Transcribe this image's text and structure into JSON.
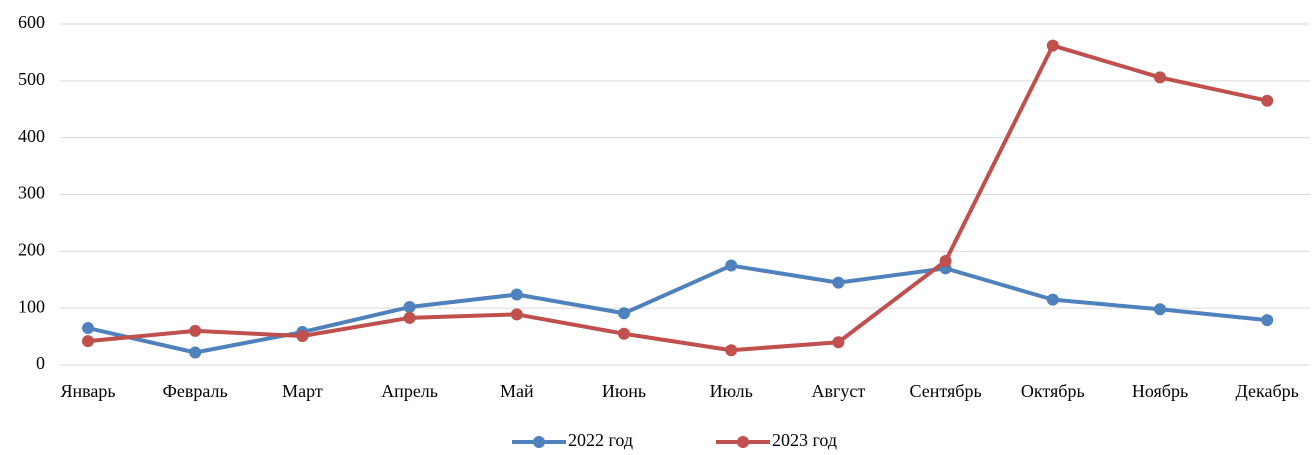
{
  "chart_data": {
    "type": "line",
    "categories": [
      "Январь",
      "Февраль",
      "Март",
      "Апрель",
      "Май",
      "Июнь",
      "Июль",
      "Август",
      "Сентябрь",
      "Октябрь",
      "Ноябрь",
      "Декабрь"
    ],
    "series": [
      {
        "name": "2022 год",
        "color": "#4f81bd",
        "values": [
          65,
          22,
          58,
          102,
          124,
          91,
          175,
          145,
          170,
          115,
          98,
          79
        ]
      },
      {
        "name": "2023 год",
        "color": "#c0504d",
        "values": [
          42,
          60,
          51,
          83,
          89,
          55,
          26,
          40,
          183,
          562,
          506,
          465
        ]
      }
    ],
    "ylim": [
      0,
      600
    ],
    "yticks": [
      0,
      100,
      200,
      300,
      400,
      500,
      600
    ],
    "grid": true,
    "legend": "bottom"
  }
}
